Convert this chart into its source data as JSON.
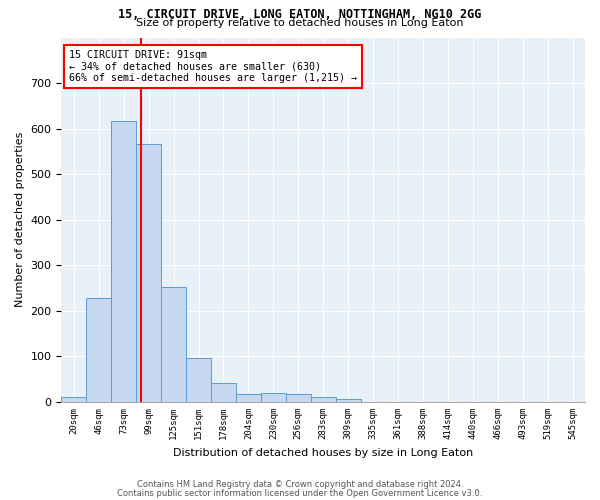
{
  "title1": "15, CIRCUIT DRIVE, LONG EATON, NOTTINGHAM, NG10 2GG",
  "title2": "Size of property relative to detached houses in Long Eaton",
  "xlabel": "Distribution of detached houses by size in Long Eaton",
  "ylabel": "Number of detached properties",
  "bin_labels": [
    "20sqm",
    "46sqm",
    "73sqm",
    "99sqm",
    "125sqm",
    "151sqm",
    "178sqm",
    "204sqm",
    "230sqm",
    "256sqm",
    "283sqm",
    "309sqm",
    "335sqm",
    "361sqm",
    "388sqm",
    "414sqm",
    "440sqm",
    "466sqm",
    "493sqm",
    "519sqm",
    "545sqm"
  ],
  "bar_heights": [
    10,
    228,
    617,
    567,
    253,
    97,
    42,
    18,
    20,
    18,
    10,
    7,
    0,
    0,
    0,
    0,
    0,
    0,
    0,
    0,
    0
  ],
  "bar_color": "#c5d8f0",
  "bar_edge_color": "#5b9bd5",
  "property_size": 91,
  "annotation_text_line1": "15 CIRCUIT DRIVE: 91sqm",
  "annotation_text_line2": "← 34% of detached houses are smaller (630)",
  "annotation_text_line3": "66% of semi-detached houses are larger (1,215) →",
  "ylim": [
    0,
    800
  ],
  "yticks": [
    0,
    100,
    200,
    300,
    400,
    500,
    600,
    700
  ],
  "bg_color": "#e8f0f8",
  "grid_color": "#ffffff",
  "footer_line1": "Contains HM Land Registry data © Crown copyright and database right 2024.",
  "footer_line2": "Contains public sector information licensed under the Open Government Licence v3.0."
}
